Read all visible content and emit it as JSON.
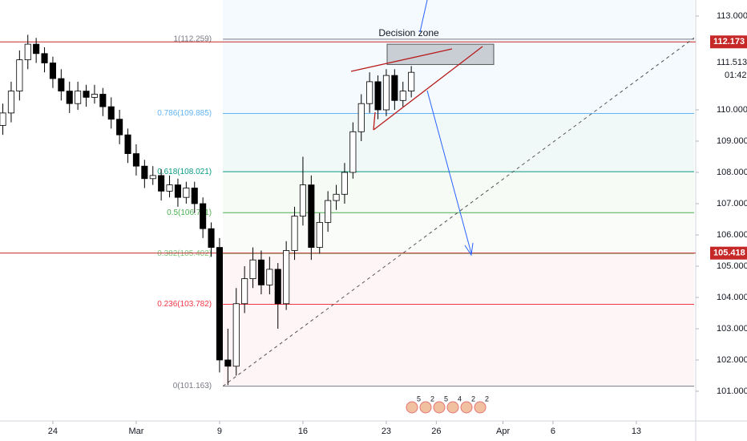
{
  "chart_data": {
    "type": "candlestick",
    "annotation": "Decision zone",
    "up_color": "#ffffff",
    "down_color": "#000000",
    "outline_color": "#000000",
    "x": [
      -3,
      -2.5,
      -2,
      -1.5,
      -1,
      -0.5,
      0,
      0.5,
      1,
      1.5,
      2,
      2.5,
      3,
      3.5,
      4,
      4.5,
      5,
      5.5,
      6,
      6.5,
      7,
      7.5,
      8,
      8.5,
      9,
      9.5,
      10,
      10.5,
      11,
      11.5,
      12,
      12.5,
      13,
      13.5,
      14,
      14.5,
      15,
      15.5,
      16,
      16.5,
      17,
      17.5,
      18,
      18.5,
      19,
      19.5,
      20,
      20.5,
      21,
      21.5
    ],
    "open": [
      109.5,
      109.9,
      110.6,
      111.6,
      112.1,
      111.8,
      111.5,
      111.0,
      110.6,
      110.2,
      110.6,
      110.4,
      110.5,
      110.1,
      109.7,
      109.2,
      108.6,
      108.2,
      107.8,
      107.9,
      107.4,
      107.6,
      107.2,
      107.5,
      107.0,
      106.2,
      105.6,
      102.0,
      101.8,
      103.8,
      104.6,
      105.2,
      104.4,
      104.9,
      103.8,
      105.5,
      106.6,
      107.6,
      105.6,
      106.4,
      107.1,
      107.3,
      108.0,
      109.3,
      110.2,
      110.9,
      110.0,
      111.1,
      110.3,
      110.6
    ],
    "high": [
      110.2,
      110.9,
      111.9,
      112.4,
      112.3,
      112.0,
      111.7,
      111.3,
      110.9,
      110.9,
      110.8,
      110.8,
      110.7,
      110.4,
      110.0,
      109.4,
      108.9,
      108.4,
      108.2,
      108.1,
      107.9,
      107.8,
      107.7,
      107.7,
      107.2,
      106.4,
      105.9,
      103.0,
      104.3,
      105.0,
      105.6,
      105.5,
      105.3,
      105.1,
      105.8,
      106.9,
      108.5,
      107.9,
      106.7,
      107.4,
      107.6,
      108.3,
      109.6,
      110.5,
      111.2,
      111.1,
      111.3,
      111.3,
      110.9,
      111.4
    ],
    "low": [
      109.2,
      109.6,
      110.3,
      111.3,
      111.5,
      111.2,
      110.7,
      110.3,
      109.9,
      110.0,
      110.1,
      110.2,
      109.8,
      109.4,
      108.9,
      108.3,
      107.9,
      107.5,
      107.6,
      107.1,
      107.2,
      106.9,
      107.0,
      106.7,
      105.9,
      105.3,
      101.6,
      101.2,
      101.5,
      103.5,
      104.3,
      104.1,
      104.1,
      103.0,
      103.6,
      105.2,
      106.3,
      105.2,
      105.4,
      106.1,
      106.8,
      107.0,
      107.8,
      109.0,
      109.9,
      109.7,
      109.8,
      110.0,
      110.1,
      110.4
    ],
    "close": [
      109.9,
      110.6,
      111.6,
      112.1,
      111.8,
      111.5,
      111.0,
      110.6,
      110.2,
      110.6,
      110.4,
      110.5,
      110.1,
      109.7,
      109.2,
      108.6,
      108.2,
      107.8,
      107.9,
      107.4,
      107.6,
      107.2,
      107.5,
      107.0,
      106.2,
      105.6,
      102.0,
      101.8,
      103.8,
      104.6,
      105.2,
      104.4,
      104.9,
      103.8,
      105.5,
      106.6,
      107.6,
      105.6,
      106.4,
      107.1,
      107.3,
      108.0,
      109.3,
      110.2,
      110.9,
      110.0,
      111.1,
      110.3,
      110.6,
      111.2
    ],
    "xlim": [
      -3.17,
      38.56
    ],
    "xticks": [
      {
        "value": 0,
        "label": "24"
      },
      {
        "value": 5,
        "label": "Mar"
      },
      {
        "value": 10,
        "label": "9"
      },
      {
        "value": 15,
        "label": "16"
      },
      {
        "value": 20,
        "label": "23"
      },
      {
        "value": 23,
        "label": "26"
      },
      {
        "value": 27,
        "label": "Apr"
      },
      {
        "value": 30,
        "label": "6"
      },
      {
        "value": 35,
        "label": "13"
      }
    ],
    "ylim": [
      100.05,
      113.513
    ],
    "yticks": [
      {
        "value": 101,
        "label": "101.000"
      },
      {
        "value": 102,
        "label": "102.000"
      },
      {
        "value": 103,
        "label": "103.000"
      },
      {
        "value": 104,
        "label": "104.000"
      },
      {
        "value": 105,
        "label": "105.000"
      },
      {
        "value": 106,
        "label": "106.000"
      },
      {
        "value": 107,
        "label": "107.000"
      },
      {
        "value": 108,
        "label": "108.000"
      },
      {
        "value": 109,
        "label": "109.000"
      },
      {
        "value": 110,
        "label": "110.000"
      },
      {
        "value": 113,
        "label": "113.000"
      }
    ],
    "fib_levels": [
      {
        "value": 112.259,
        "label": "1(112.259)",
        "color": "#787b86",
        "fill": "rgba(33,150,243,0.05)"
      },
      {
        "value": 109.885,
        "label": "0.786(109.885)",
        "color": "#64b5f6",
        "fill": "rgba(33,150,243,0.05)"
      },
      {
        "value": 108.021,
        "label": "0.618(108.021)",
        "color": "#089981",
        "fill": "rgba(8,153,129,0.06)"
      },
      {
        "value": 106.711,
        "label": "0.5(106.711)",
        "color": "#4caf50",
        "fill": "rgba(76,175,80,0.05)"
      },
      {
        "value": 105.402,
        "label": "0.382(105.402)",
        "color": "#81c784",
        "fill": "rgba(129,199,132,0.05)"
      },
      {
        "value": 103.782,
        "label": "0.236(103.782)",
        "color": "#f23645",
        "fill": "rgba(242,54,69,0.05)"
      },
      {
        "value": 101.163,
        "label": "0(101.163)",
        "color": "#787b86",
        "fill": "rgba(242,54,69,0.05)"
      }
    ],
    "horizontal_lines": [
      {
        "value": 112.173,
        "label": "112.173",
        "color": "#c62828"
      },
      {
        "value": 105.418,
        "label": "105.418",
        "color": "#c62828"
      }
    ],
    "current_price": {
      "value": 111.513,
      "label": "111.513"
    },
    "countdown": "01:42",
    "events": [
      "5",
      "2",
      "5",
      "4",
      "2",
      "2"
    ]
  }
}
